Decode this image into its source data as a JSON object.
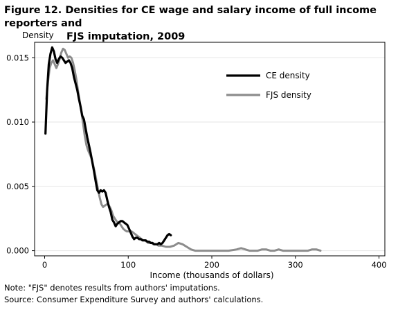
{
  "figure": {
    "title_line1": "Figure 12. Densities for CE wage and salary income of full income reporters and",
    "title_line2": "FJS imputation, 2009"
  },
  "chart_data": {
    "type": "line",
    "title": "Figure 12. Densities for CE wage and salary income of full income reporters and FJS imputation, 2009",
    "xlabel": "Income (thousands  of dollars)",
    "ylabel": "Density",
    "xlim": [
      -12,
      407
    ],
    "ylim": [
      -0.0004,
      0.0162
    ],
    "xticks": [
      0,
      100,
      200,
      300,
      400
    ],
    "yticks": [
      0.0,
      0.005,
      0.01,
      0.015
    ],
    "xtick_labels": [
      "0",
      "100",
      "200",
      "300",
      "400"
    ],
    "ytick_labels": [
      "0.000",
      "0.005",
      "0.010",
      "0.015"
    ],
    "grid": "horizontal",
    "legend_position": "top-right",
    "series": [
      {
        "name": "CE density",
        "color": "#000000",
        "x": [
          1,
          3,
          5,
          7,
          9,
          11,
          13,
          15,
          17,
          19,
          21,
          23,
          25,
          27,
          29,
          31,
          33,
          35,
          37,
          39,
          41,
          43,
          45,
          47,
          49,
          51,
          53,
          55,
          57,
          59,
          61,
          63,
          65,
          67,
          69,
          71,
          73,
          75,
          77,
          79,
          81,
          83,
          85,
          87,
          89,
          91,
          93,
          95,
          97,
          99,
          101,
          103,
          105,
          107,
          109,
          111,
          113,
          115,
          117,
          119,
          121,
          123,
          125,
          127,
          129,
          131,
          133,
          135,
          137,
          139,
          141,
          143,
          145,
          147,
          149,
          151
        ],
        "y": [
          0.0091,
          0.0125,
          0.0145,
          0.0153,
          0.0158,
          0.0155,
          0.0149,
          0.0146,
          0.0149,
          0.0151,
          0.015,
          0.0148,
          0.0146,
          0.0147,
          0.0148,
          0.0146,
          0.0142,
          0.0135,
          0.013,
          0.0125,
          0.0118,
          0.0112,
          0.0105,
          0.0102,
          0.0095,
          0.0088,
          0.0082,
          0.0076,
          0.0069,
          0.0062,
          0.0054,
          0.0047,
          0.0045,
          0.0047,
          0.0046,
          0.0047,
          0.0045,
          0.0039,
          0.0034,
          0.003,
          0.0024,
          0.0022,
          0.0019,
          0.0021,
          0.0022,
          0.0023,
          0.0023,
          0.0022,
          0.0021,
          0.002,
          0.0017,
          0.0014,
          0.0011,
          0.0009,
          0.001,
          0.001,
          0.0009,
          0.0009,
          0.0008,
          0.0008,
          0.0008,
          0.0007,
          0.0007,
          0.0006,
          0.0006,
          0.0005,
          0.0005,
          0.0005,
          0.0006,
          0.0005,
          0.0006,
          0.0008,
          0.001,
          0.0012,
          0.0013,
          0.0012
        ]
      },
      {
        "name": "FJS density",
        "color": "#8c8c8c",
        "x": [
          2,
          4,
          6,
          8,
          10,
          12,
          14,
          16,
          18,
          20,
          22,
          24,
          26,
          28,
          30,
          32,
          34,
          36,
          38,
          40,
          42,
          44,
          46,
          48,
          50,
          52,
          54,
          56,
          58,
          60,
          62,
          64,
          66,
          68,
          70,
          72,
          74,
          76,
          78,
          80,
          82,
          84,
          86,
          88,
          90,
          92,
          94,
          96,
          98,
          100,
          102,
          104,
          106,
          108,
          110,
          112,
          114,
          116,
          118,
          120,
          122,
          124,
          126,
          128,
          130,
          132,
          134,
          136,
          138,
          140,
          145,
          150,
          155,
          160,
          165,
          170,
          175,
          180,
          185,
          190,
          200,
          210,
          220,
          230,
          235,
          240,
          245,
          250,
          255,
          260,
          265,
          270,
          275,
          280,
          285,
          290,
          295,
          300,
          305,
          310,
          315,
          320,
          325,
          330
        ],
        "y": [
          0.0118,
          0.0131,
          0.0142,
          0.0146,
          0.0148,
          0.0145,
          0.0142,
          0.0145,
          0.0149,
          0.0154,
          0.0157,
          0.0156,
          0.0153,
          0.015,
          0.0151,
          0.015,
          0.0146,
          0.014,
          0.0133,
          0.0124,
          0.0116,
          0.0108,
          0.0099,
          0.0089,
          0.0082,
          0.0078,
          0.0075,
          0.0072,
          0.0067,
          0.0061,
          0.0054,
          0.0047,
          0.0041,
          0.0036,
          0.0034,
          0.0035,
          0.0036,
          0.0036,
          0.0034,
          0.0031,
          0.0027,
          0.0025,
          0.0023,
          0.0022,
          0.0021,
          0.0019,
          0.0017,
          0.0016,
          0.0015,
          0.0015,
          0.0015,
          0.0015,
          0.0014,
          0.0013,
          0.0012,
          0.0011,
          0.001,
          0.0009,
          0.0008,
          0.0008,
          0.0007,
          0.0006,
          0.0006,
          0.0006,
          0.0005,
          0.0005,
          0.0005,
          0.0004,
          0.0004,
          0.0004,
          0.0003,
          0.0003,
          0.0004,
          0.0006,
          0.0005,
          0.0003,
          0.0001,
          0.0,
          0.0,
          0.0,
          0.0,
          0.0,
          0.0,
          0.0001,
          0.0002,
          0.0001,
          0.0,
          0.0,
          0.0,
          0.0001,
          0.0001,
          0.0,
          0.0,
          0.0001,
          0.0,
          0.0,
          0.0,
          0.0,
          0.0,
          0.0,
          0.0,
          0.0001,
          0.0001,
          0.0
        ]
      }
    ]
  },
  "notes": {
    "note": "Note: \"FJS\" denotes results from authors' imputations.",
    "source": "Source: Consumer Expenditure  Survey and authors' calculations."
  }
}
